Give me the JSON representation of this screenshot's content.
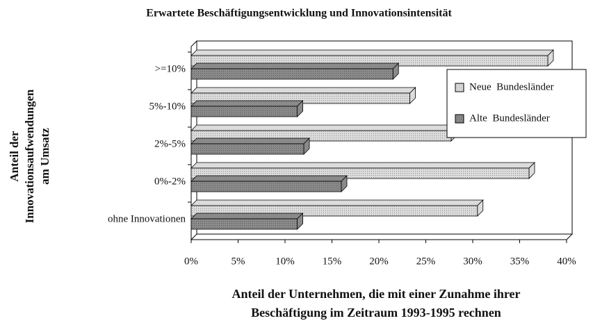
{
  "chart_data": {
    "type": "bar3d_horizontal",
    "title": "Erwartete Beschäftigungsentwicklung und Innovationsintensität",
    "ylabel": [
      "Anteil der",
      "Innovationsaufwendungen",
      "am Umsatz"
    ],
    "xlabel": [
      "Anteil der Unternehmen, die mit einer Zunahme ihrer",
      "Beschäftigung im Zeitraum 1993-1995 rechnen"
    ],
    "categories": [
      ">=10%",
      "5%-10%",
      "2%-5%",
      "0%-2%",
      "ohne Innovationen"
    ],
    "series": [
      {
        "name": "Neue  Bundesländer",
        "color": "#dcdcdc",
        "values": [
          38,
          23.3,
          27.7,
          36,
          30.5
        ]
      },
      {
        "name": "Alte  Bundesländer",
        "color": "#8a8a8a",
        "values": [
          21.5,
          11.3,
          12,
          16,
          11.3
        ]
      }
    ],
    "xlim": [
      0,
      40
    ],
    "xticks": [
      {
        "value": 0,
        "label": "0%"
      },
      {
        "value": 5,
        "label": "5%"
      },
      {
        "value": 10,
        "label": "10%"
      },
      {
        "value": 15,
        "label": "15%"
      },
      {
        "value": 20,
        "label": "20%"
      },
      {
        "value": 25,
        "label": "25%"
      },
      {
        "value": 30,
        "label": "30%"
      },
      {
        "value": 35,
        "label": "35%"
      },
      {
        "value": 40,
        "label": "40%"
      }
    ],
    "legend": "upper right"
  }
}
